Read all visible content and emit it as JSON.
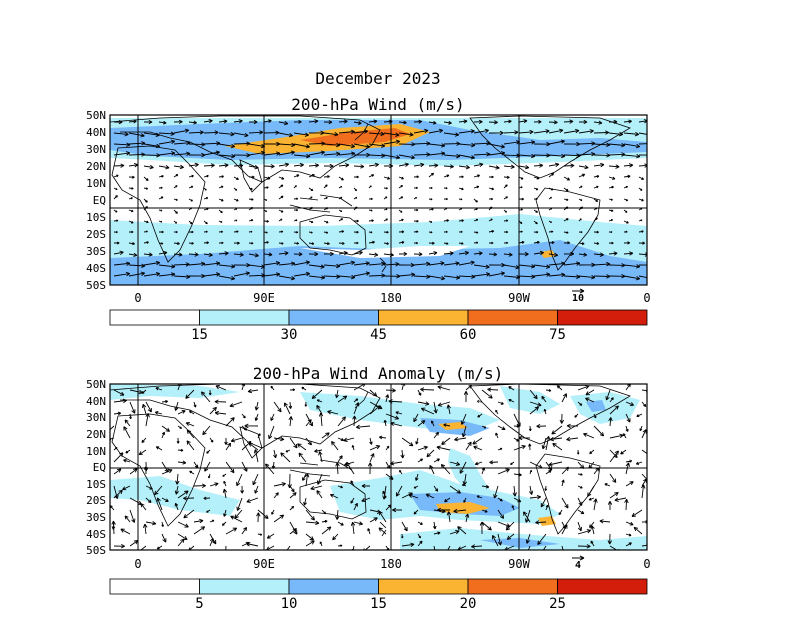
{
  "figure": {
    "title": "December 2023"
  },
  "panels": [
    {
      "id": "mean",
      "title": "200-hPa Wind (m/s)",
      "lat_labels": [
        "50N",
        "40N",
        "30N",
        "20N",
        "10N",
        "EQ",
        "10S",
        "20S",
        "30S",
        "40S",
        "50S"
      ],
      "lon_labels": [
        "0",
        "90E",
        "180",
        "90W",
        "0"
      ],
      "reference_vector": "10",
      "colorbar": {
        "colors": [
          "#ffffff",
          "#b4f0fa",
          "#78b9fa",
          "#fab432",
          "#f06e1e",
          "#d21e0a"
        ],
        "tick_labels": [
          "15",
          "30",
          "45",
          "60",
          "75"
        ]
      }
    },
    {
      "id": "anomaly",
      "title": "200-hPa Wind Anomaly (m/s)",
      "lat_labels": [
        "50N",
        "40N",
        "30N",
        "20N",
        "10N",
        "EQ",
        "10S",
        "20S",
        "30S",
        "40S",
        "50S"
      ],
      "lon_labels": [
        "0",
        "90E",
        "180",
        "90W",
        "0"
      ],
      "reference_vector": "4",
      "colorbar": {
        "colors": [
          "#ffffff",
          "#b4f0fa",
          "#78b9fa",
          "#fab432",
          "#f06e1e",
          "#d21e0a"
        ],
        "tick_labels": [
          "5",
          "10",
          "15",
          "20",
          "25"
        ]
      }
    }
  ]
}
